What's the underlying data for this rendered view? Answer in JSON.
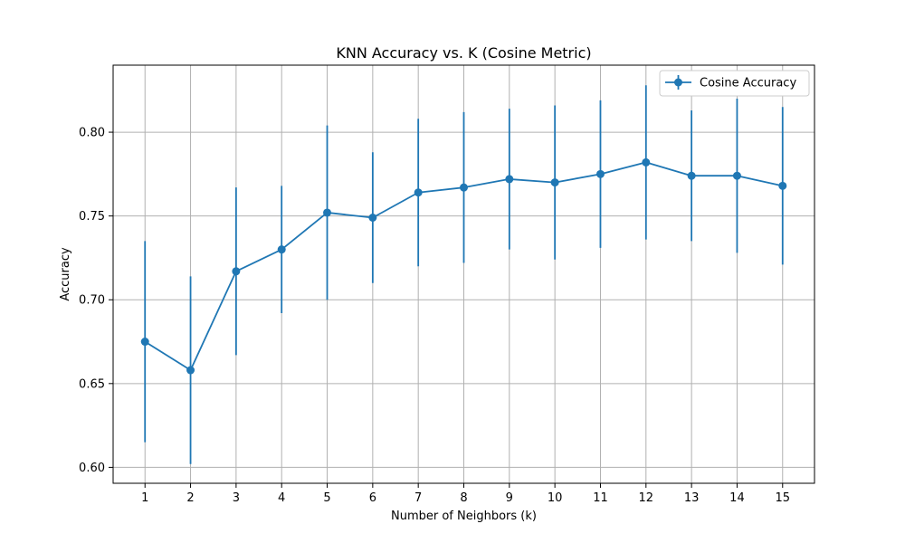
{
  "chart_data": {
    "type": "line",
    "title": "KNN Accuracy vs. K (Cosine Metric)",
    "xlabel": "Number of Neighbors (k)",
    "ylabel": "Accuracy",
    "x": [
      1,
      2,
      3,
      4,
      5,
      6,
      7,
      8,
      9,
      10,
      11,
      12,
      13,
      14,
      15
    ],
    "x_tick_labels": [
      "1",
      "2",
      "3",
      "4",
      "5",
      "6",
      "7",
      "8",
      "9",
      "10",
      "11",
      "12",
      "13",
      "14",
      "15"
    ],
    "xlim": [
      0.3,
      15.7
    ],
    "ylim": [
      0.5905,
      0.84
    ],
    "y_ticks": [
      0.6,
      0.65,
      0.7,
      0.75,
      0.8
    ],
    "y_tick_labels": [
      "0.60",
      "0.65",
      "0.70",
      "0.75",
      "0.80"
    ],
    "grid": true,
    "legend_position": "top-right",
    "series": [
      {
        "name": "Cosine Accuracy",
        "color": "#1f77b4",
        "marker": "circle",
        "values": [
          0.675,
          0.658,
          0.717,
          0.73,
          0.752,
          0.749,
          0.764,
          0.767,
          0.772,
          0.77,
          0.775,
          0.782,
          0.774,
          0.774,
          0.768
        ],
        "error": [
          0.06,
          0.056,
          0.05,
          0.038,
          0.052,
          0.039,
          0.044,
          0.045,
          0.042,
          0.046,
          0.044,
          0.046,
          0.039,
          0.046,
          0.047
        ]
      }
    ]
  }
}
